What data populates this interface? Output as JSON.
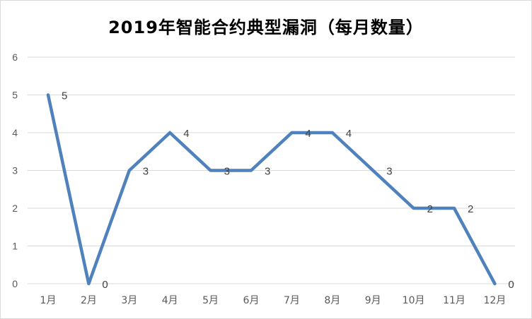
{
  "chart_data": {
    "type": "line",
    "title": "2019年智能合约典型漏洞（每月数量）",
    "categories": [
      "1月",
      "2月",
      "3月",
      "4月",
      "5月",
      "6月",
      "7月",
      "8月",
      "9月",
      "10月",
      "11月",
      "12月"
    ],
    "series": [
      {
        "values": [
          5,
          0,
          3,
          4,
          3,
          3,
          4,
          4,
          3,
          2,
          2,
          0
        ],
        "color": "#4f81bd",
        "data_labels": [
          "5",
          "0",
          "3",
          "4",
          "3",
          "3",
          "4",
          "4",
          "3",
          "2",
          "2",
          "0"
        ]
      }
    ],
    "ylim": [
      0,
      6
    ],
    "yticks": [
      "0",
      "1",
      "2",
      "3",
      "4",
      "5",
      "6"
    ],
    "grid": true,
    "legend": "none",
    "xlabel": "",
    "ylabel": ""
  },
  "colors": {
    "line": "#4f81bd",
    "grid": "#d9d9d9",
    "axis_text": "#595959"
  }
}
